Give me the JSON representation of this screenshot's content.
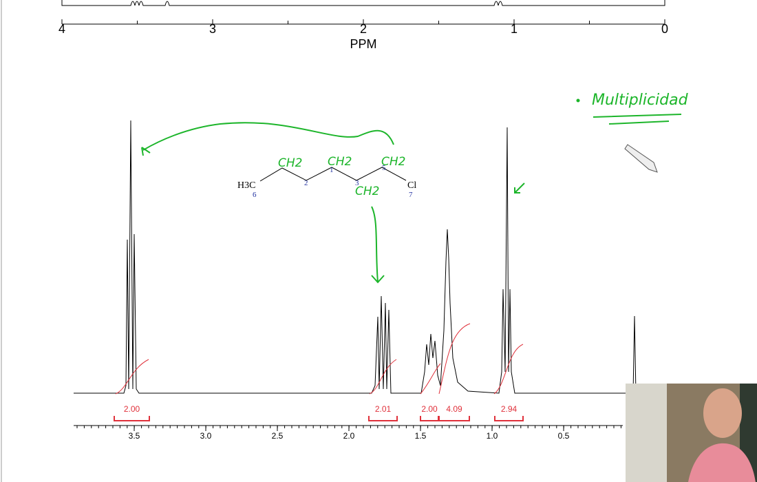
{
  "top_axis": {
    "ticks": [
      "4",
      "3",
      "2",
      "1",
      "0"
    ],
    "label": "PPM"
  },
  "bottom_axis": {
    "ticks": [
      "3.5",
      "3.0",
      "2.5",
      "2.0",
      "1.5",
      "1.0",
      "0.5"
    ]
  },
  "integrals": [
    "2.00",
    "2.01",
    "2.00",
    "4.09",
    "2.94"
  ],
  "molecule": {
    "left_group": "H3C",
    "right_group": "Cl",
    "numbers": [
      "6",
      "2",
      "1",
      "3",
      "5",
      "7"
    ]
  },
  "annotations": {
    "groups": [
      "CH2",
      "CH2",
      "CH2",
      "CH2"
    ],
    "heading": "Multiplicidad"
  }
}
